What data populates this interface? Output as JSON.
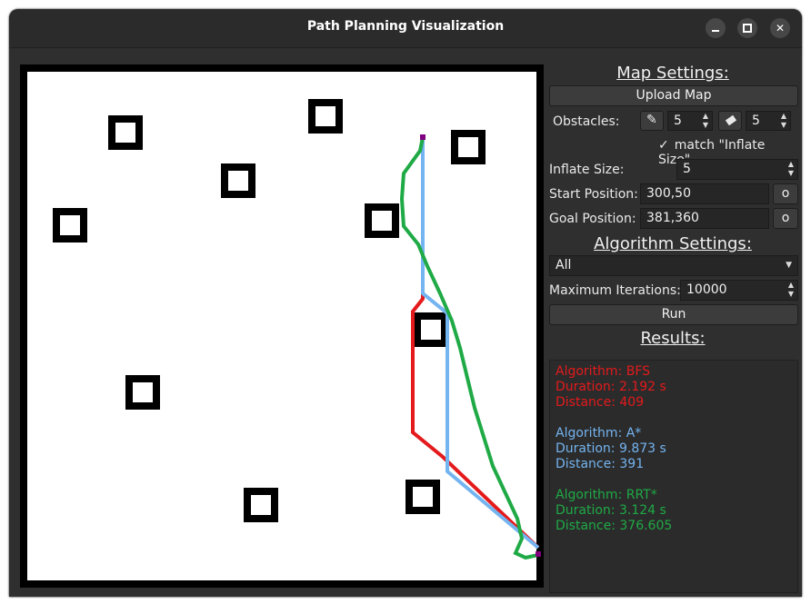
{
  "window": {
    "title": "Path Planning Visualization",
    "controls": [
      "minimize",
      "maximize",
      "close"
    ]
  },
  "map": {
    "start": [
      300,
      50
    ],
    "goal": [
      381,
      360
    ],
    "obstacles_note_colors": {
      "bfs": "#e41a1c",
      "astar": "#74b4f0",
      "rrtstar": "#1faa46",
      "marker": "#800080"
    }
  },
  "settings": {
    "map_heading": "Map Settings:",
    "upload_label": "Upload Map",
    "obstacles_label": "Obstacles:",
    "draw_value": "5",
    "erase_value": "5",
    "match_checkbox_mark": "✓",
    "match_label": "match \"Inflate Size\"",
    "inflate_label": "Inflate Size:",
    "inflate_value": "5",
    "start_label": "Start Position:",
    "start_value": "300,50",
    "start_pick": "o",
    "goal_label": "Goal Position:",
    "goal_value": "381,360",
    "goal_pick": "o"
  },
  "algorithm": {
    "heading": "Algorithm Settings:",
    "selected": "All",
    "max_iter_label": "Maximum Iterations:",
    "max_iter_value": "10000",
    "run_label": "Run"
  },
  "results": {
    "heading": "Results:",
    "items": [
      {
        "algorithm": "Algorithm: BFS",
        "duration": "Duration: 2.192 s",
        "distance": "Distance: 409",
        "color": "#e41a1c"
      },
      {
        "algorithm": "Algorithm: A*",
        "duration": "Duration: 9.873 s",
        "distance": "Distance: 391",
        "color": "#74b4f0"
      },
      {
        "algorithm": "Algorithm: RRT*",
        "duration": "Duration: 3.124 s",
        "distance": "Distance: 376.605",
        "color": "#1faa46"
      }
    ]
  }
}
